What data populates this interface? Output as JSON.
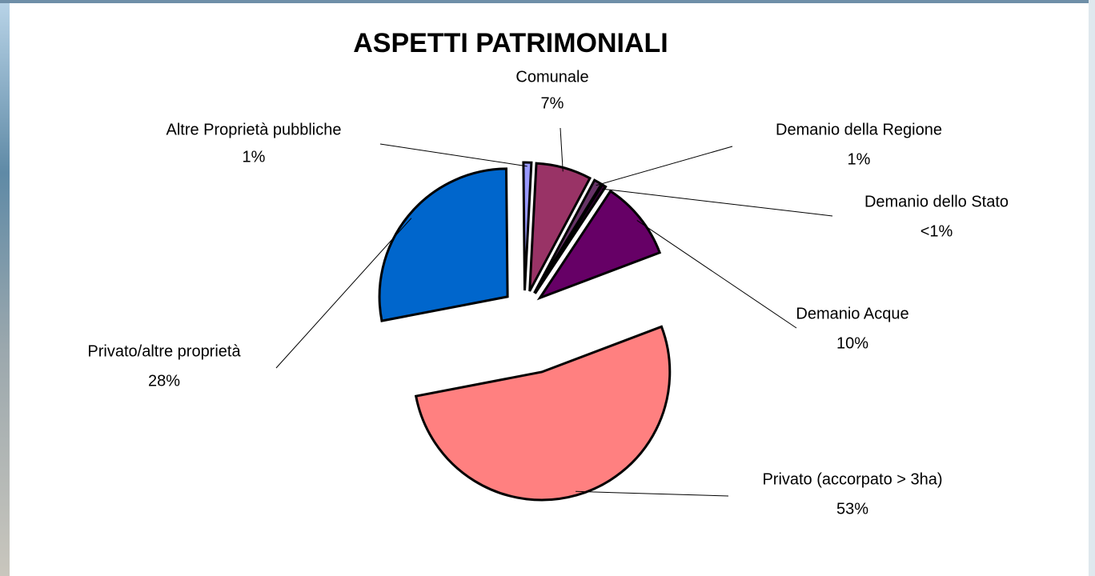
{
  "chart_data": {
    "type": "pie",
    "title": "ASPETTI PATRIMONIALI",
    "categories": [
      "Comunale",
      "Demanio della Regione",
      "Demanio dello Stato",
      "Demanio Acque",
      "Privato (accorpato > 3ha)",
      "Privato/altre proprietà",
      "Altre  Proprietà pubbliche"
    ],
    "values": [
      7,
      1,
      0.5,
      10,
      53,
      28,
      1
    ],
    "value_labels": [
      "7%",
      "1%",
      "<1%",
      "10%",
      "53%",
      "28%",
      "1%"
    ],
    "colors": [
      "#993366",
      "#663366",
      "#330033",
      "#660066",
      "#ff8080",
      "#0066cc",
      "#9999ff"
    ]
  }
}
